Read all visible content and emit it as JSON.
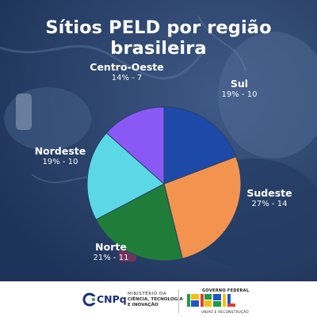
{
  "chart_data": {
    "type": "pie",
    "title": "Sítios PELD por região brasileira",
    "slices": [
      {
        "label": "Sul",
        "value_label": "19% - 10",
        "count": 10,
        "percent": 19,
        "color": "#1d4aa8"
      },
      {
        "label": "Sudeste",
        "value_label": "27% - 14",
        "count": 14,
        "percent": 27,
        "color": "#f2944f"
      },
      {
        "label": "Norte",
        "value_label": "21% - 11",
        "count": 11,
        "percent": 21,
        "color": "#1f7d39"
      },
      {
        "label": "Nordeste",
        "value_label": "19% - 10",
        "count": 10,
        "percent": 19,
        "color": "#5ad8e6"
      },
      {
        "label": "Centro-Oeste",
        "value_label": "14% - 7",
        "count": 7,
        "percent": 14,
        "color": "#8a59f5"
      }
    ]
  },
  "footer": {
    "cnpq": "CNPq",
    "ministry_lines": [
      "MINISTÉRIO DA",
      "CIÊNCIA, TECNOLOGIA",
      "E INOVAÇÃO"
    ],
    "gov_title": "GOVERNO FEDERAL",
    "gov_word": "BRASIL",
    "gov_slogan": "UNIÃO E RECONSTRUÇÃO"
  }
}
